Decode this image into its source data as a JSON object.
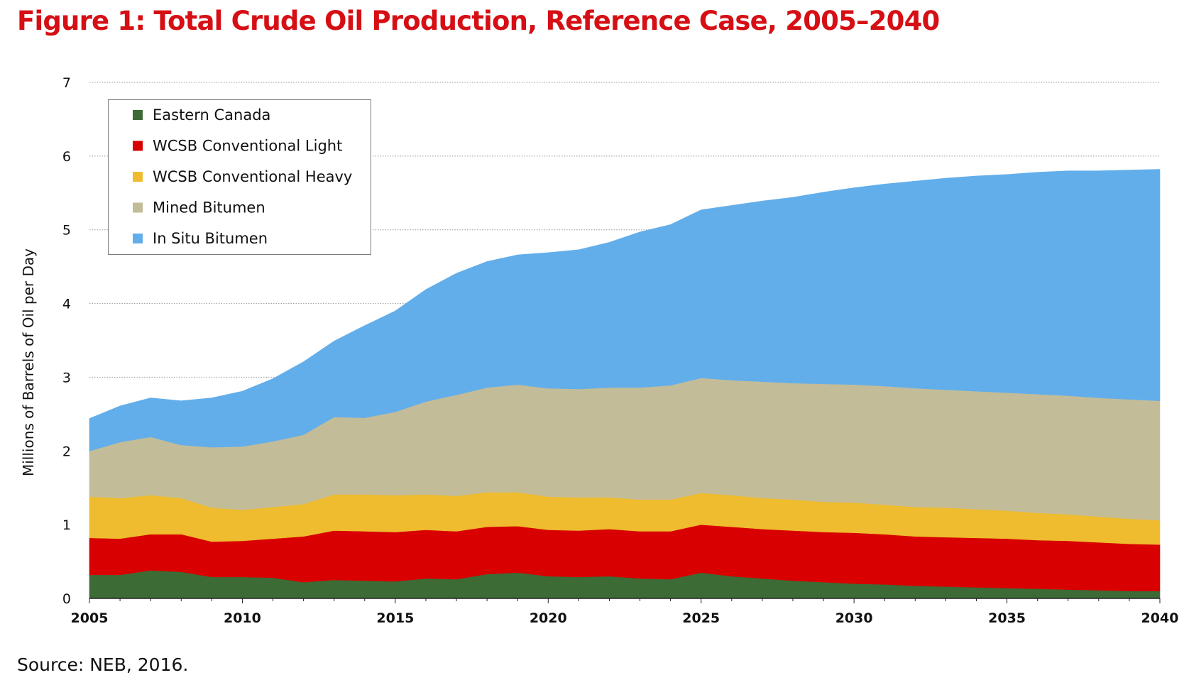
{
  "title": "Figure 1: Total Crude Oil Production, Reference Case, 2005–2040",
  "source": "Source: NEB, 2016.",
  "chart_data": {
    "type": "area",
    "stacked": true,
    "title": "Figure 1: Total Crude Oil Production, Reference Case, 2005–2040",
    "xlabel": "",
    "ylabel": "Millions of Barrels of Oil per Day",
    "xlim": [
      2005,
      2040
    ],
    "ylim": [
      0,
      7
    ],
    "x_ticks": [
      "2005",
      "2010",
      "2015",
      "2020",
      "2025",
      "2030",
      "2035",
      "2040"
    ],
    "y_ticks": [
      "0",
      "1",
      "2",
      "3",
      "4",
      "5",
      "6",
      "7"
    ],
    "grid": "horizontal dotted",
    "legend_position": "top-left",
    "x": [
      2005,
      2006,
      2007,
      2008,
      2009,
      2010,
      2011,
      2012,
      2013,
      2014,
      2015,
      2016,
      2017,
      2018,
      2019,
      2020,
      2021,
      2022,
      2023,
      2024,
      2025,
      2026,
      2027,
      2028,
      2029,
      2030,
      2031,
      2032,
      2033,
      2034,
      2035,
      2036,
      2037,
      2038,
      2039,
      2040
    ],
    "series": [
      {
        "name": "Eastern Canada",
        "color": "#3d6b35",
        "values": [
          0.32,
          0.32,
          0.38,
          0.36,
          0.29,
          0.29,
          0.28,
          0.22,
          0.25,
          0.24,
          0.23,
          0.27,
          0.26,
          0.33,
          0.35,
          0.3,
          0.29,
          0.3,
          0.27,
          0.26,
          0.35,
          0.3,
          0.27,
          0.24,
          0.22,
          0.2,
          0.19,
          0.17,
          0.16,
          0.15,
          0.14,
          0.13,
          0.12,
          0.11,
          0.1,
          0.1
        ]
      },
      {
        "name": "WCSB Conventional Light",
        "color": "#d80000",
        "values": [
          0.5,
          0.49,
          0.49,
          0.51,
          0.48,
          0.49,
          0.53,
          0.62,
          0.67,
          0.67,
          0.67,
          0.66,
          0.65,
          0.64,
          0.63,
          0.63,
          0.63,
          0.64,
          0.64,
          0.65,
          0.65,
          0.67,
          0.67,
          0.68,
          0.68,
          0.69,
          0.68,
          0.67,
          0.67,
          0.67,
          0.67,
          0.66,
          0.66,
          0.65,
          0.64,
          0.63
        ]
      },
      {
        "name": "WCSB Conventional Heavy",
        "color": "#eebc2e",
        "values": [
          0.56,
          0.55,
          0.53,
          0.49,
          0.46,
          0.42,
          0.43,
          0.44,
          0.49,
          0.5,
          0.5,
          0.48,
          0.48,
          0.47,
          0.46,
          0.45,
          0.45,
          0.43,
          0.43,
          0.43,
          0.43,
          0.43,
          0.42,
          0.42,
          0.41,
          0.41,
          0.4,
          0.4,
          0.4,
          0.39,
          0.38,
          0.37,
          0.36,
          0.35,
          0.34,
          0.33
        ]
      },
      {
        "name": "Mined Bitumen",
        "color": "#c3bc98",
        "values": [
          0.62,
          0.76,
          0.79,
          0.72,
          0.82,
          0.86,
          0.89,
          0.94,
          1.05,
          1.04,
          1.13,
          1.26,
          1.37,
          1.42,
          1.46,
          1.47,
          1.47,
          1.49,
          1.52,
          1.55,
          1.56,
          1.56,
          1.58,
          1.58,
          1.6,
          1.6,
          1.61,
          1.61,
          1.6,
          1.6,
          1.6,
          1.61,
          1.61,
          1.61,
          1.62,
          1.62
        ]
      },
      {
        "name": "In Situ Bitumen",
        "color": "#62aeea",
        "values": [
          0.44,
          0.49,
          0.53,
          0.6,
          0.67,
          0.75,
          0.85,
          0.99,
          1.03,
          1.25,
          1.37,
          1.52,
          1.65,
          1.71,
          1.76,
          1.84,
          1.89,
          1.97,
          2.11,
          2.18,
          2.28,
          2.37,
          2.45,
          2.52,
          2.6,
          2.67,
          2.74,
          2.81,
          2.87,
          2.92,
          2.96,
          3.01,
          3.05,
          3.08,
          3.11,
          3.14
        ]
      }
    ]
  }
}
